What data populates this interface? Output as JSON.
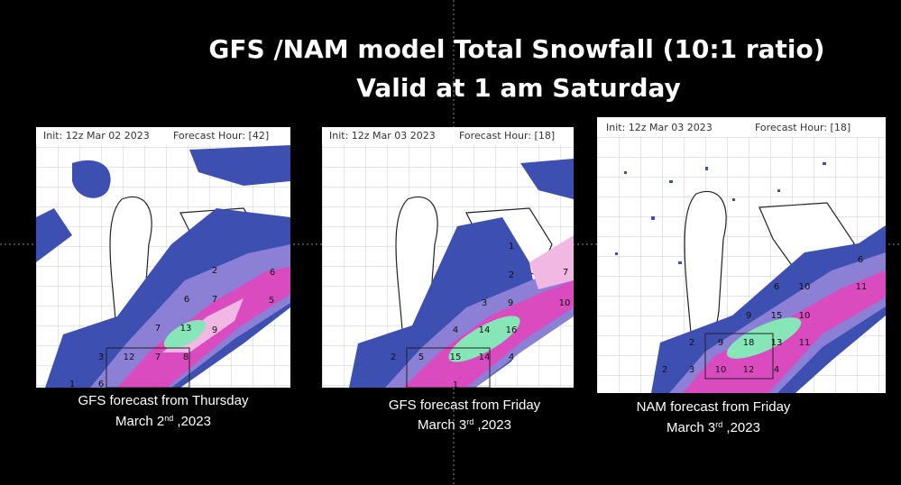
{
  "title": "GFS /NAM model Total Snowfall (10:1 ratio)",
  "subtitle": "Valid at  1 am Saturday",
  "panels": [
    {
      "header_init": "Init: 12z Mar 02 2023",
      "header_hour": "Forecast Hour: [42]",
      "map_labels": [
        "2",
        "6",
        "6",
        "7",
        "5",
        "7",
        "13",
        "9",
        "3",
        "12",
        "7",
        "8",
        "1",
        "6"
      ],
      "caption_line1": "GFS forecast from Thursday",
      "caption_line2": [
        "March 2",
        "nd",
        " ,2023"
      ]
    },
    {
      "header_init": "Init: 12z Mar 03 2023",
      "header_hour": "Forecast Hour: [18]",
      "map_labels": [
        "1",
        "2",
        "7",
        "3",
        "9",
        "10",
        "4",
        "14",
        "16",
        "2",
        "5",
        "15",
        "14",
        "4",
        "1"
      ],
      "caption_line1": "GFS forecast from Friday",
      "caption_line2": [
        "March 3",
        "rd",
        " ,2023"
      ]
    },
    {
      "header_init": "Init: 12z Mar 03 2023",
      "header_hour": "Forecast Hour: [18]",
      "map_labels": [
        "6",
        "6",
        "10",
        "11",
        "9",
        "15",
        "10",
        "2",
        "9",
        "18",
        "13",
        "11",
        "2",
        "3",
        "10",
        "12",
        "4"
      ],
      "caption_line1": "NAM forecast from Friday",
      "caption_line2": [
        "March 3",
        "rd",
        " ,2023"
      ]
    }
  ]
}
